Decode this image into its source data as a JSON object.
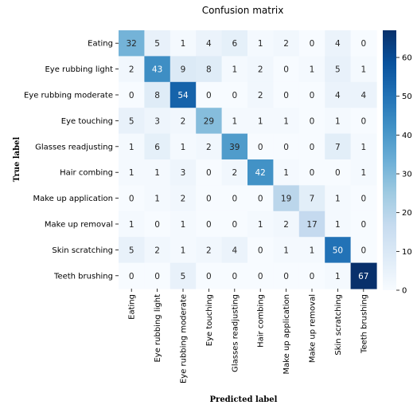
{
  "chart_data": {
    "type": "heatmap",
    "title": "Confusion matrix",
    "xlabel": "Predicted label",
    "ylabel": "True label",
    "row_labels": [
      "Eating",
      "Eye rubbing light",
      "Eye rubbing moderate",
      "Eye touching",
      "Glasses readjusting",
      "Hair combing",
      "Make up application",
      "Make up removal",
      "Skin scratching",
      "Teeth brushing"
    ],
    "col_labels": [
      "Eating",
      "Eye rubbing light",
      "Eye rubbing moderate",
      "Eye touching",
      "Glasses readjusting",
      "Hair combing",
      "Make up application",
      "Make up removal",
      "Skin scratching",
      "Teeth brushing"
    ],
    "values": [
      [
        32,
        5,
        1,
        4,
        6,
        1,
        2,
        0,
        4,
        0
      ],
      [
        2,
        43,
        9,
        8,
        1,
        2,
        0,
        1,
        5,
        1
      ],
      [
        0,
        8,
        54,
        0,
        0,
        2,
        0,
        0,
        4,
        4
      ],
      [
        5,
        3,
        2,
        29,
        1,
        1,
        1,
        0,
        1,
        0
      ],
      [
        1,
        6,
        1,
        2,
        39,
        0,
        0,
        0,
        7,
        1
      ],
      [
        1,
        1,
        3,
        0,
        2,
        42,
        1,
        0,
        0,
        1
      ],
      [
        0,
        1,
        2,
        0,
        0,
        0,
        19,
        7,
        1,
        0
      ],
      [
        1,
        0,
        1,
        0,
        0,
        1,
        2,
        17,
        1,
        0
      ],
      [
        5,
        2,
        1,
        2,
        4,
        0,
        1,
        1,
        50,
        0
      ],
      [
        0,
        0,
        5,
        0,
        0,
        0,
        0,
        0,
        1,
        67
      ]
    ],
    "colorbar": {
      "colormap": "Blues",
      "vmin": 0,
      "vmax": 67,
      "ticks": [
        "0",
        "10",
        "20",
        "30",
        "40",
        "50",
        "60"
      ]
    }
  }
}
